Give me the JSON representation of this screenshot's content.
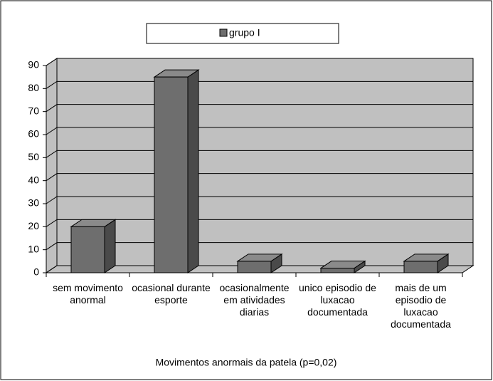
{
  "chart_data": {
    "type": "bar3d",
    "title": "Movimentos anormais da patela (p=0,02)",
    "categories": [
      "sem movimento anormal",
      "ocasional durante esporte",
      "ocasionalmente em atividades diarias",
      "unico episodio de luxacao documentada",
      "mais de um episodio de luxacao documentada"
    ],
    "series": [
      {
        "name": "grupo I",
        "color": "#6e6e6e",
        "values": [
          20,
          85,
          5,
          2,
          5
        ]
      }
    ],
    "ylim": [
      0,
      90
    ],
    "yticks": [
      0,
      10,
      20,
      30,
      40,
      50,
      60,
      70,
      80,
      90
    ],
    "grid": true,
    "legend": "top"
  }
}
